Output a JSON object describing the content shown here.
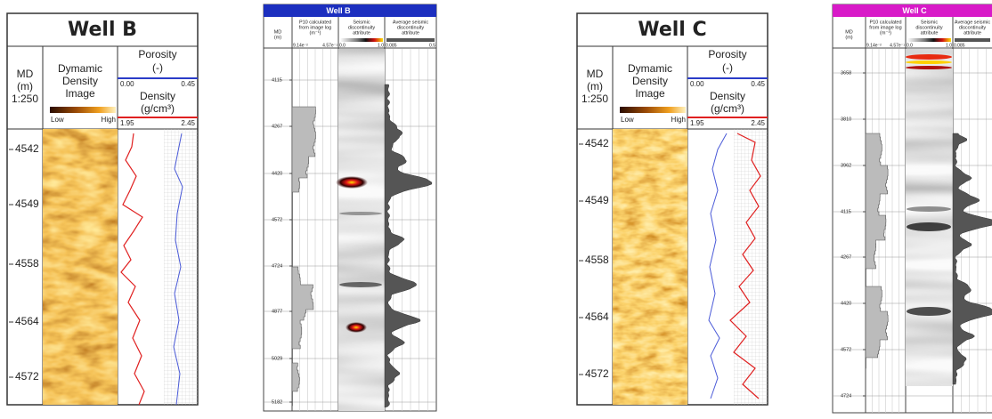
{
  "well_b_image": {
    "title": "Well B",
    "md": [
      "MD",
      "(m)",
      "1:250"
    ],
    "image": [
      "Dymamic",
      "Density",
      "Image"
    ],
    "low": "Low",
    "high": "High",
    "porosity": [
      "Porosity",
      "(-)"
    ],
    "porosity_range": [
      "0.00",
      "0.45"
    ],
    "density": [
      "Density",
      "(g/cm³)"
    ],
    "density_range": [
      "1.95",
      "2.45"
    ],
    "depths": [
      "4542",
      "4549",
      "4558",
      "4564",
      "4572"
    ]
  },
  "well_b_log": {
    "title": "Well B",
    "md": [
      "MD",
      "(m)"
    ],
    "p10": [
      "P10 calculated",
      "from image log",
      "(m⁻¹)"
    ],
    "seismic": [
      "Seismic",
      "discontinuity",
      "attribute"
    ],
    "average": [
      "Average seismic",
      "discontinuity",
      "attribute"
    ],
    "p10_range": [
      "9.14e⁻²",
      "4.57e⁻¹"
    ],
    "seismic_range": [
      "0.0",
      "1.0"
    ],
    "average_range": [
      "0.085",
      "0.5"
    ],
    "depths": [
      "4115",
      "4267",
      "4420",
      "4572",
      "4724",
      "4877",
      "5029",
      "5182"
    ]
  },
  "well_c_image": {
    "title": "Well C",
    "md": [
      "MD",
      "(m)",
      "1:250"
    ],
    "image": [
      "Dymamic",
      "Density",
      "Image"
    ],
    "low": "Low",
    "high": "High",
    "porosity": [
      "Porosity",
      "(-)"
    ],
    "porosity_range": [
      "0.00",
      "0.45"
    ],
    "density": [
      "Density",
      "(g/cm³)"
    ],
    "density_range": [
      "1.95",
      "2.45"
    ],
    "depths": [
      "4542",
      "4549",
      "4558",
      "4564",
      "4572"
    ]
  },
  "well_c_log": {
    "title": "Well C",
    "md": [
      "MD",
      "(m)"
    ],
    "p10": [
      "P10 calculated",
      "from image log",
      "(m⁻¹)"
    ],
    "seismic": [
      "Seismic",
      "discontinuity",
      "attribute"
    ],
    "average": [
      "Average seismic",
      "discontinuity",
      "attribute"
    ],
    "p10_range": [
      "9.14e⁻²",
      "4.57e⁻¹"
    ],
    "seismic_range": [
      "0.0",
      "1.0"
    ],
    "average_range": [
      "0.085"
    ],
    "depths": [
      "3658",
      "3810",
      "3962",
      "4115",
      "4267",
      "4420",
      "4572",
      "4724"
    ]
  }
}
